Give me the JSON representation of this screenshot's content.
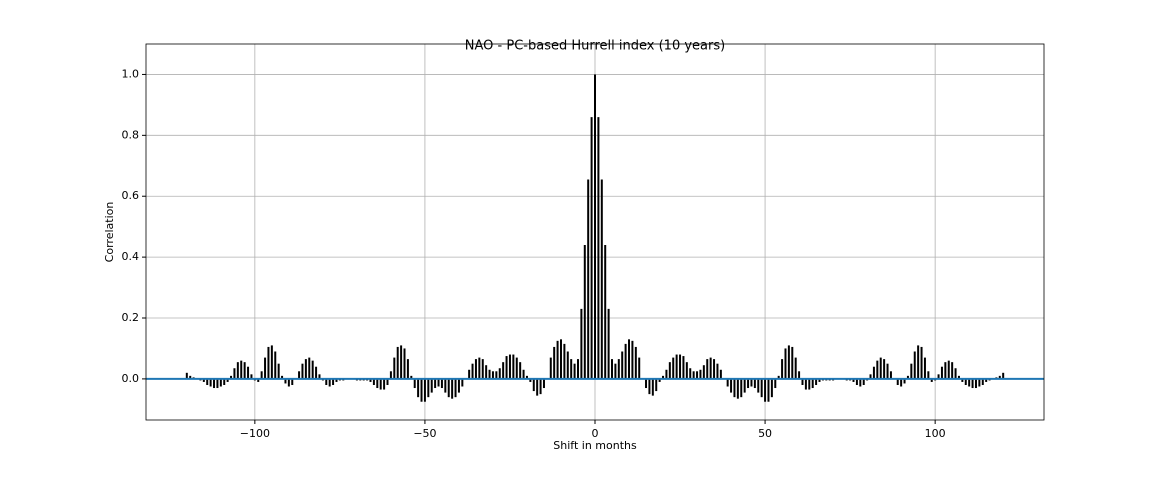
{
  "chart_data": {
    "type": "xcorr",
    "title": "NAO - PC-based Hurrell index (10 years)",
    "xlabel": "Shift in months",
    "ylabel": "Correlation",
    "color": "#000000",
    "baseline_color": "#1f77b4",
    "grid": true,
    "xlim": [
      -132,
      132
    ],
    "ylim": [
      -0.135,
      1.1
    ],
    "xticks": [
      {
        "value": -100,
        "label": "−100"
      },
      {
        "value": -50,
        "label": "−50"
      },
      0,
      50,
      100
    ],
    "yticks": [
      {
        "value": 0,
        "label": "0.0"
      },
      0.2,
      0.4,
      0.6,
      0.8,
      {
        "value": 1,
        "label": "1.0"
      }
    ],
    "x": [
      -120,
      -119,
      -118,
      -117,
      -116,
      -115,
      -114,
      -113,
      -112,
      -111,
      -110,
      -109,
      -108,
      -107,
      -106,
      -105,
      -104,
      -103,
      -102,
      -101,
      -100,
      -99,
      -98,
      -97,
      -96,
      -95,
      -94,
      -93,
      -92,
      -91,
      -90,
      -89,
      -88,
      -87,
      -86,
      -85,
      -84,
      -83,
      -82,
      -81,
      -80,
      -79,
      -78,
      -77,
      -76,
      -75,
      -74,
      -73,
      -72,
      -71,
      -70,
      -69,
      -68,
      -67,
      -66,
      -65,
      -64,
      -63,
      -62,
      -61,
      -60,
      -59,
      -58,
      -57,
      -56,
      -55,
      -54,
      -53,
      -52,
      -51,
      -50,
      -49,
      -48,
      -47,
      -46,
      -45,
      -44,
      -43,
      -42,
      -41,
      -40,
      -39,
      -38,
      -37,
      -36,
      -35,
      -34,
      -33,
      -32,
      -31,
      -30,
      -29,
      -28,
      -27,
      -26,
      -25,
      -24,
      -23,
      -22,
      -21,
      -20,
      -19,
      -18,
      -17,
      -16,
      -15,
      -14,
      -13,
      -12,
      -11,
      -10,
      -9,
      -8,
      -7,
      -6,
      -5,
      -4,
      -3,
      -2,
      -1,
      0,
      1,
      2,
      3,
      4,
      5,
      6,
      7,
      8,
      9,
      10,
      11,
      12,
      13,
      14,
      15,
      16,
      17,
      18,
      19,
      20,
      21,
      22,
      23,
      24,
      25,
      26,
      27,
      28,
      29,
      30,
      31,
      32,
      33,
      34,
      35,
      36,
      37,
      38,
      39,
      40,
      41,
      42,
      43,
      44,
      45,
      46,
      47,
      48,
      49,
      50,
      51,
      52,
      53,
      54,
      55,
      56,
      57,
      58,
      59,
      60,
      61,
      62,
      63,
      64,
      65,
      66,
      67,
      68,
      69,
      70,
      71,
      72,
      73,
      74,
      75,
      76,
      77,
      78,
      79,
      80,
      81,
      82,
      83,
      84,
      85,
      86,
      87,
      88,
      89,
      90,
      91,
      92,
      93,
      94,
      95,
      96,
      97,
      98,
      99,
      100,
      101,
      102,
      103,
      104,
      105,
      106,
      107,
      108,
      109,
      110,
      111,
      112,
      113,
      114,
      115,
      116,
      117,
      118,
      119,
      120
    ],
    "values": [
      0.02,
      0.01,
      0.005,
      0.0,
      -0.005,
      -0.01,
      -0.02,
      -0.025,
      -0.03,
      -0.03,
      -0.025,
      -0.02,
      -0.01,
      0.01,
      0.035,
      0.055,
      0.06,
      0.055,
      0.04,
      0.015,
      -0.005,
      -0.01,
      0.025,
      0.07,
      0.105,
      0.11,
      0.09,
      0.05,
      0.01,
      -0.015,
      -0.025,
      -0.02,
      0.0,
      0.025,
      0.05,
      0.065,
      0.07,
      0.06,
      0.04,
      0.015,
      -0.005,
      -0.02,
      -0.025,
      -0.02,
      -0.01,
      -0.005,
      -0.005,
      0,
      0,
      0,
      -0.005,
      -0.005,
      -0.005,
      -0.005,
      -0.01,
      -0.02,
      -0.03,
      -0.035,
      -0.035,
      -0.02,
      0.025,
      0.07,
      0.105,
      0.11,
      0.1,
      0.065,
      0.01,
      -0.03,
      -0.06,
      -0.075,
      -0.075,
      -0.06,
      -0.045,
      -0.03,
      -0.025,
      -0.03,
      -0.045,
      -0.06,
      -0.065,
      -0.06,
      -0.045,
      -0.025,
      0.0,
      0.03,
      0.05,
      0.065,
      0.07,
      0.065,
      0.045,
      0.03,
      0.025,
      0.025,
      0.035,
      0.055,
      0.075,
      0.08,
      0.08,
      0.07,
      0.055,
      0.03,
      0.01,
      -0.01,
      -0.04,
      -0.055,
      -0.05,
      -0.03,
      0.0,
      0.07,
      0.105,
      0.125,
      0.13,
      0.115,
      0.09,
      0.065,
      0.05,
      0.065,
      0.23,
      0.44,
      0.655,
      0.86,
      1.0,
      0.86,
      0.655,
      0.44,
      0.23,
      0.065,
      0.05,
      0.065,
      0.09,
      0.115,
      0.13,
      0.125,
      0.105,
      0.07,
      0.0,
      -0.03,
      -0.05,
      -0.055,
      -0.04,
      -0.01,
      0.01,
      0.03,
      0.055,
      0.07,
      0.08,
      0.08,
      0.075,
      0.055,
      0.035,
      0.025,
      0.025,
      0.03,
      0.045,
      0.065,
      0.07,
      0.065,
      0.05,
      0.03,
      0.0,
      -0.025,
      -0.045,
      -0.06,
      -0.065,
      -0.06,
      -0.045,
      -0.03,
      -0.025,
      -0.03,
      -0.045,
      -0.06,
      -0.075,
      -0.075,
      -0.06,
      -0.03,
      0.01,
      0.065,
      0.1,
      0.11,
      0.105,
      0.07,
      0.025,
      -0.02,
      -0.035,
      -0.035,
      -0.03,
      -0.02,
      -0.01,
      -0.005,
      -0.005,
      -0.005,
      -0.005,
      0,
      0,
      0,
      -0.005,
      -0.005,
      -0.01,
      -0.02,
      -0.025,
      -0.02,
      -0.005,
      0.015,
      0.04,
      0.06,
      0.07,
      0.065,
      0.05,
      0.025,
      0.0,
      -0.02,
      -0.025,
      -0.015,
      0.01,
      0.05,
      0.09,
      0.11,
      0.105,
      0.07,
      0.025,
      -0.01,
      -0.005,
      0.015,
      0.04,
      0.055,
      0.06,
      0.055,
      0.035,
      0.01,
      -0.01,
      -0.02,
      -0.025,
      -0.03,
      -0.03,
      -0.025,
      -0.02,
      -0.01,
      -0.005,
      0.0,
      0.005,
      0.01,
      0.02
    ]
  }
}
